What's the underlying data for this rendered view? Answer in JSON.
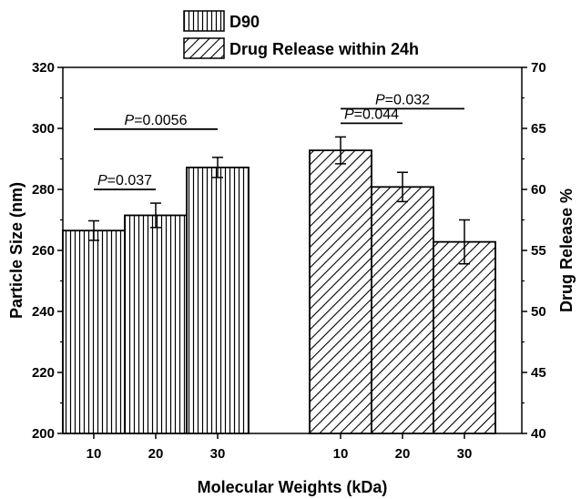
{
  "chart_data": {
    "type": "bar",
    "xlabel": "Molecular Weights (kDa)",
    "ylabel_left": "Particle Size (nm)",
    "ylabel_right": "Drug Release %",
    "ylim_left": [
      200,
      320
    ],
    "ylim_right": [
      40,
      70
    ],
    "yticks_left": [
      200,
      220,
      240,
      260,
      280,
      300,
      320
    ],
    "yticks_right": [
      40,
      45,
      50,
      55,
      60,
      65,
      70
    ],
    "legend_placement": "top",
    "series": [
      {
        "name": "D90",
        "axis": "left",
        "pattern": "vertical-lines",
        "categories": [
          "10",
          "20",
          "30"
        ],
        "values": [
          266.5,
          271.5,
          287.2
        ],
        "errors": [
          3.2,
          4.0,
          3.3
        ]
      },
      {
        "name": "Drug Release within 24h",
        "axis": "right",
        "pattern": "diagonal-lines",
        "categories": [
          "10",
          "20",
          "30"
        ],
        "values": [
          63.2,
          60.2,
          55.7
        ],
        "errors": [
          1.1,
          1.2,
          1.8
        ]
      }
    ],
    "annotations": [
      {
        "prefix": "P",
        "text": "=0.037",
        "series": 0,
        "from": 0,
        "to": 1
      },
      {
        "prefix": "P",
        "text": "=0.0056",
        "series": 0,
        "from": 0,
        "to": 2
      },
      {
        "prefix": "P",
        "text": "=0.044",
        "series": 1,
        "from": 0,
        "to": 1
      },
      {
        "prefix": "P",
        "text": "=0.032",
        "series": 1,
        "from": 0,
        "to": 2
      }
    ]
  }
}
